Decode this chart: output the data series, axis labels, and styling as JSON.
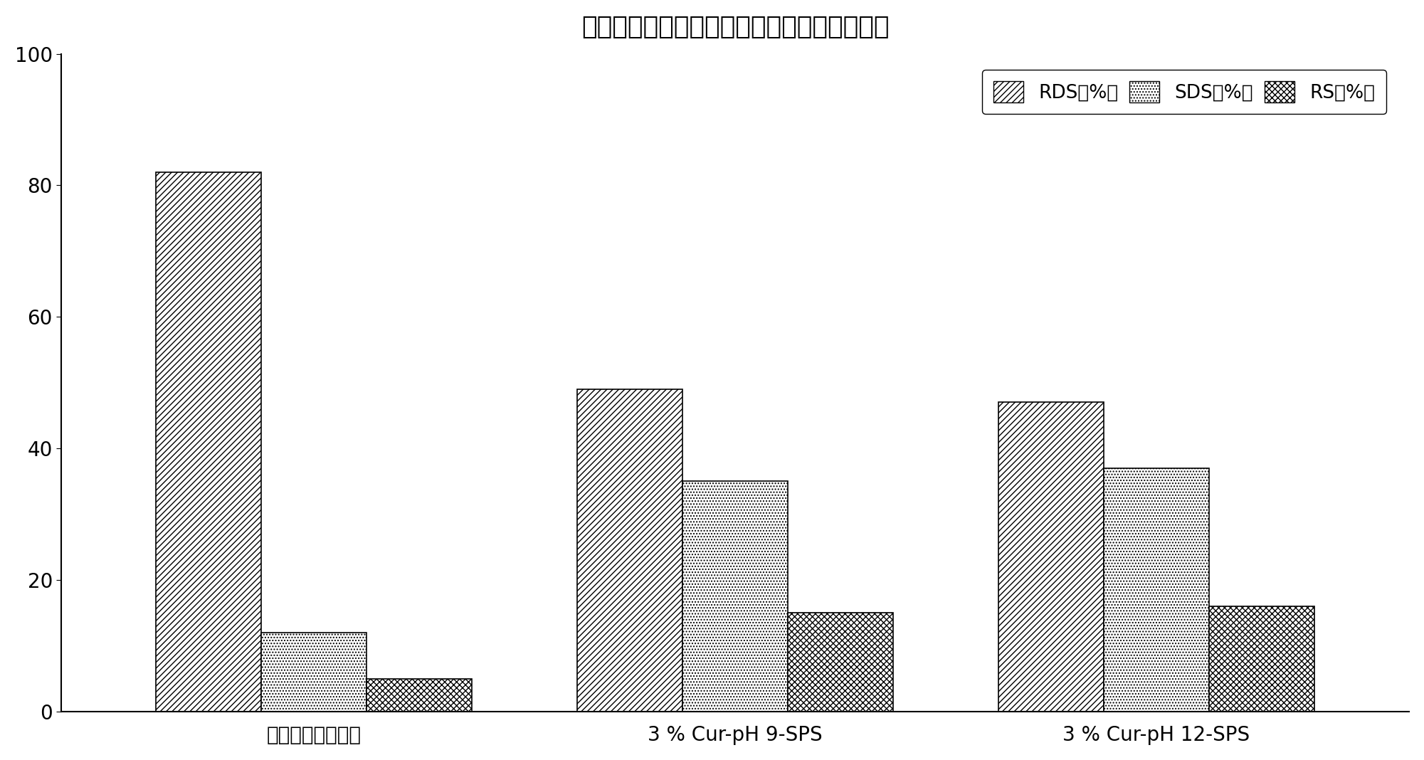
{
  "title": "不同实施例及传统甘薯粉丝中各类型淀粉含量",
  "groups": [
    "传统甘薯粉丝工艺",
    "3 % Cur-pH 9-SPS",
    "3 % Cur-pH 12-SPS"
  ],
  "series": [
    {
      "label": "RDS（%）",
      "values": [
        82,
        49,
        47
      ],
      "hatch": "////",
      "facecolor": "white",
      "edgecolor": "black"
    },
    {
      "label": "SDS（%）",
      "values": [
        12,
        35,
        37
      ],
      "hatch": "....",
      "facecolor": "white",
      "edgecolor": "black"
    },
    {
      "label": "RS（%）",
      "values": [
        5,
        15,
        16
      ],
      "hatch": "xxxx",
      "facecolor": "white",
      "edgecolor": "black"
    }
  ],
  "ylim": [
    0,
    100
  ],
  "yticks": [
    0,
    20,
    40,
    60,
    80,
    100
  ],
  "bar_width": 0.25,
  "background_color": "#ffffff",
  "title_fontsize": 26,
  "tick_fontsize": 20,
  "legend_fontsize": 19,
  "xticklabel_fontsize": 20
}
